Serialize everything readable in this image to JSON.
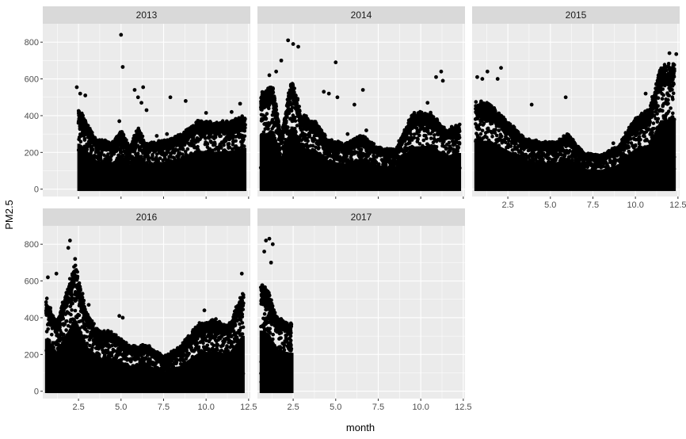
{
  "chart_data": {
    "type": "scatter",
    "facet_by": "year",
    "xlabel": "month",
    "ylabel": "PM2.5",
    "xlim": [
      0.4,
      12.6
    ],
    "ylim": [
      -40,
      900
    ],
    "x_ticks": [
      2.5,
      5.0,
      7.5,
      10.0,
      12.5
    ],
    "x_tick_labels": [
      "2.5",
      "5.0",
      "7.5",
      "10.0",
      "12.5"
    ],
    "y_ticks": [
      0,
      200,
      400,
      600,
      800
    ],
    "y_tick_labels": [
      "0",
      "200",
      "400",
      "600",
      "800"
    ],
    "grid": true,
    "point_color": "#000000",
    "panel_background": "#ebebeb",
    "strip_background": "#d9d9d9",
    "gridline_color": "#ffffff",
    "panels": [
      {
        "label": "2013",
        "monthly_upper": [
          {
            "month": 2.5,
            "upper": 450
          },
          {
            "month": 3.5,
            "upper": 280
          },
          {
            "month": 4.5,
            "upper": 260
          },
          {
            "month": 5,
            "upper": 330
          },
          {
            "month": 5.5,
            "upper": 230
          },
          {
            "month": 6,
            "upper": 340
          },
          {
            "month": 6.5,
            "upper": 250
          },
          {
            "month": 7.5,
            "upper": 270
          },
          {
            "month": 8.5,
            "upper": 300
          },
          {
            "month": 9.5,
            "upper": 380
          },
          {
            "month": 10.5,
            "upper": 370
          },
          {
            "month": 11.5,
            "upper": 380
          },
          {
            "month": 12.3,
            "upper": 410
          }
        ],
        "outliers": [
          {
            "x": 2.4,
            "y": 555
          },
          {
            "x": 2.6,
            "y": 520
          },
          {
            "x": 2.9,
            "y": 510
          },
          {
            "x": 4.9,
            "y": 370
          },
          {
            "x": 5.0,
            "y": 840
          },
          {
            "x": 5.1,
            "y": 665
          },
          {
            "x": 5.8,
            "y": 540
          },
          {
            "x": 6.0,
            "y": 500
          },
          {
            "x": 6.2,
            "y": 470
          },
          {
            "x": 6.3,
            "y": 555
          },
          {
            "x": 6.5,
            "y": 430
          },
          {
            "x": 7.1,
            "y": 290
          },
          {
            "x": 7.7,
            "y": 300
          },
          {
            "x": 7.9,
            "y": 500
          },
          {
            "x": 8.2,
            "y": 250
          },
          {
            "x": 8.8,
            "y": 480
          },
          {
            "x": 10.0,
            "y": 415
          },
          {
            "x": 11.5,
            "y": 420
          },
          {
            "x": 12.0,
            "y": 465
          }
        ]
      },
      {
        "label": "2014",
        "monthly_upper": [
          {
            "month": 0.6,
            "upper": 540
          },
          {
            "month": 1.3,
            "upper": 570
          },
          {
            "month": 1.8,
            "upper": 300
          },
          {
            "month": 2.4,
            "upper": 620
          },
          {
            "month": 3,
            "upper": 410
          },
          {
            "month": 3.8,
            "upper": 380
          },
          {
            "month": 4.5,
            "upper": 280
          },
          {
            "month": 5.5,
            "upper": 250
          },
          {
            "month": 6.5,
            "upper": 300
          },
          {
            "month": 7.5,
            "upper": 230
          },
          {
            "month": 8.5,
            "upper": 220
          },
          {
            "month": 9.5,
            "upper": 420
          },
          {
            "month": 10.5,
            "upper": 430
          },
          {
            "month": 11.5,
            "upper": 330
          },
          {
            "month": 12.3,
            "upper": 360
          }
        ],
        "outliers": [
          {
            "x": 1.1,
            "y": 620
          },
          {
            "x": 1.5,
            "y": 640
          },
          {
            "x": 1.8,
            "y": 700
          },
          {
            "x": 2.2,
            "y": 810
          },
          {
            "x": 2.5,
            "y": 790
          },
          {
            "x": 2.8,
            "y": 775
          },
          {
            "x": 4.3,
            "y": 530
          },
          {
            "x": 4.6,
            "y": 520
          },
          {
            "x": 5.0,
            "y": 690
          },
          {
            "x": 5.1,
            "y": 500
          },
          {
            "x": 5.7,
            "y": 300
          },
          {
            "x": 6.1,
            "y": 460
          },
          {
            "x": 6.6,
            "y": 540
          },
          {
            "x": 6.8,
            "y": 320
          },
          {
            "x": 10.4,
            "y": 470
          },
          {
            "x": 10.9,
            "y": 610
          },
          {
            "x": 11.2,
            "y": 640
          },
          {
            "x": 11.3,
            "y": 590
          }
        ]
      },
      {
        "label": "2015",
        "monthly_upper": [
          {
            "month": 0.6,
            "upper": 480
          },
          {
            "month": 1.4,
            "upper": 480
          },
          {
            "month": 2.0,
            "upper": 420
          },
          {
            "month": 2.8,
            "upper": 350
          },
          {
            "month": 3.5,
            "upper": 280
          },
          {
            "month": 4.5,
            "upper": 260
          },
          {
            "month": 5.5,
            "upper": 270
          },
          {
            "month": 6.0,
            "upper": 310
          },
          {
            "month": 7.0,
            "upper": 200
          },
          {
            "month": 8.0,
            "upper": 190
          },
          {
            "month": 9.0,
            "upper": 240
          },
          {
            "month": 10.0,
            "upper": 400
          },
          {
            "month": 10.8,
            "upper": 440
          },
          {
            "month": 11.5,
            "upper": 680
          },
          {
            "month": 12.3,
            "upper": 700
          }
        ],
        "outliers": [
          {
            "x": 0.7,
            "y": 610
          },
          {
            "x": 1.0,
            "y": 600
          },
          {
            "x": 1.3,
            "y": 640
          },
          {
            "x": 1.9,
            "y": 600
          },
          {
            "x": 2.1,
            "y": 660
          },
          {
            "x": 3.9,
            "y": 460
          },
          {
            "x": 5.9,
            "y": 500
          },
          {
            "x": 8.7,
            "y": 250
          },
          {
            "x": 10.6,
            "y": 520
          },
          {
            "x": 12.0,
            "y": 740
          },
          {
            "x": 12.4,
            "y": 735
          }
        ]
      },
      {
        "label": "2016",
        "monthly_upper": [
          {
            "month": 0.6,
            "upper": 520
          },
          {
            "month": 1.2,
            "upper": 380
          },
          {
            "month": 1.8,
            "upper": 560
          },
          {
            "month": 2.3,
            "upper": 700
          },
          {
            "month": 3.0,
            "upper": 430
          },
          {
            "month": 3.7,
            "upper": 330
          },
          {
            "month": 4.5,
            "upper": 330
          },
          {
            "month": 5.5,
            "upper": 250
          },
          {
            "month": 6.5,
            "upper": 260
          },
          {
            "month": 7.5,
            "upper": 190
          },
          {
            "month": 8.5,
            "upper": 250
          },
          {
            "month": 9.5,
            "upper": 370
          },
          {
            "month": 10.5,
            "upper": 400
          },
          {
            "month": 11.3,
            "upper": 360
          },
          {
            "month": 12.2,
            "upper": 560
          }
        ],
        "outliers": [
          {
            "x": 0.7,
            "y": 620
          },
          {
            "x": 1.2,
            "y": 640
          },
          {
            "x": 1.9,
            "y": 780
          },
          {
            "x": 2.0,
            "y": 820
          },
          {
            "x": 2.3,
            "y": 720
          },
          {
            "x": 3.1,
            "y": 470
          },
          {
            "x": 4.9,
            "y": 410
          },
          {
            "x": 5.1,
            "y": 400
          },
          {
            "x": 9.9,
            "y": 440
          },
          {
            "x": 12.1,
            "y": 640
          }
        ]
      },
      {
        "label": "2017",
        "monthly_upper": [
          {
            "month": 0.6,
            "upper": 600
          },
          {
            "month": 1.0,
            "upper": 570
          },
          {
            "month": 1.5,
            "upper": 420
          },
          {
            "month": 2.0,
            "upper": 390
          },
          {
            "month": 2.4,
            "upper": 380
          }
        ],
        "outliers": [
          {
            "x": 0.9,
            "y": 820
          },
          {
            "x": 1.1,
            "y": 830
          },
          {
            "x": 1.3,
            "y": 800
          },
          {
            "x": 0.8,
            "y": 760
          },
          {
            "x": 1.2,
            "y": 700
          }
        ]
      }
    ]
  }
}
